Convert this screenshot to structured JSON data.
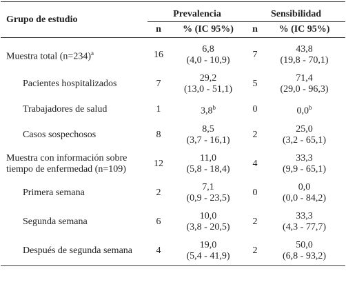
{
  "table": {
    "header": {
      "group": "Grupo de estudio",
      "prevalence": "Prevalencia",
      "sensitivity": "Sensibilidad",
      "sub": [
        "n",
        "% (IC 95%)",
        "n",
        "% (IC 95%)"
      ]
    },
    "groups": [
      {
        "label": "Muestra total (n=234)",
        "note": "a",
        "prev": {
          "n": 16,
          "pct": "6,8",
          "ci": "(4,0 - 10,9)"
        },
        "sens": {
          "n": 7,
          "pct": "43,8",
          "ci": "(19,8 - 70,1)"
        },
        "subrows": [
          {
            "label": "Pacientes hospitalizados",
            "prev": {
              "n": 7,
              "pct": "29,2",
              "ci": "(13,0 - 51,1)"
            },
            "sens": {
              "n": 5,
              "pct": "71,4",
              "ci": "(29,0 - 96,3)"
            }
          },
          {
            "label": "Trabajadores de salud",
            "prev": {
              "n": 1,
              "pct": "3,8",
              "note": "b"
            },
            "sens": {
              "n": 0,
              "pct": "0,0",
              "note": "b"
            }
          },
          {
            "label": "Casos sospechosos",
            "prev": {
              "n": 8,
              "pct": "8,5",
              "ci": "(3,7 - 16,1)"
            },
            "sens": {
              "n": 2,
              "pct": "25,0",
              "ci": "(3,2 - 65,1)"
            }
          }
        ]
      },
      {
        "label": "Muestra con información sobre tiempo de enfermedad (n=109)",
        "prev": {
          "n": 12,
          "pct": "11,0",
          "ci": "(5,8 - 18,4)"
        },
        "sens": {
          "n": 4,
          "pct": "33,3",
          "ci": "(9,9 - 65,1)"
        },
        "subrows": [
          {
            "label": "Primera semana",
            "prev": {
              "n": 2,
              "pct": "7,1",
              "ci": "(0,9 - 23,5)"
            },
            "sens": {
              "n": 0,
              "pct": "0,0",
              "ci": "(0,0 - 84,2)"
            }
          },
          {
            "label": "Segunda semana",
            "prev": {
              "n": 6,
              "pct": "10,0",
              "ci": "(3,8 - 20,5)"
            },
            "sens": {
              "n": 2,
              "pct": "33,3",
              "ci": "(4,3 - 77,7)"
            }
          },
          {
            "label": "Después de segunda semana",
            "prev": {
              "n": 4,
              "pct": "19,0",
              "ci": "(5,4 - 41,9)"
            },
            "sens": {
              "n": 2,
              "pct": "50,0",
              "ci": "(6,8 - 93,2)"
            }
          }
        ]
      }
    ]
  }
}
